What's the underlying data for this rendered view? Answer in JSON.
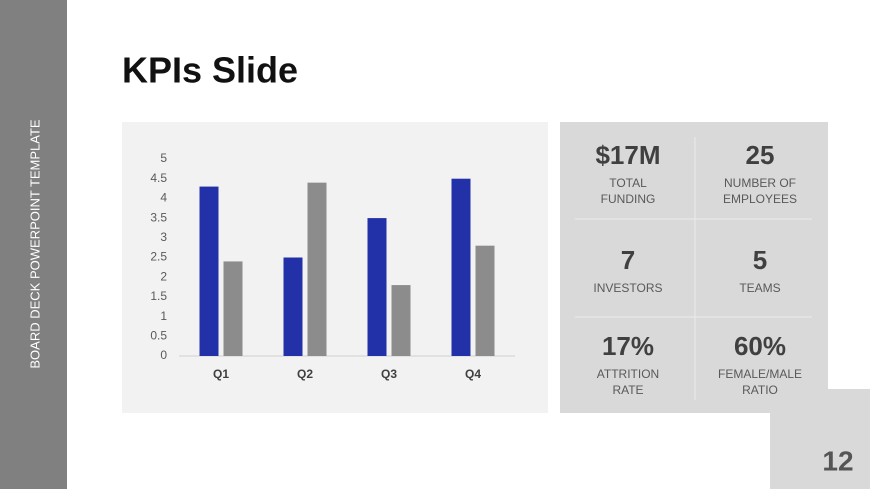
{
  "sidebar": {
    "text": "BOARD DECK POWERPOINT TEMPLATE"
  },
  "title": "KPIs Slide",
  "chart_data": {
    "type": "bar",
    "categories": [
      "Q1",
      "Q2",
      "Q3",
      "Q4"
    ],
    "series": [
      {
        "color": "#2231a8",
        "values": [
          4.3,
          2.5,
          3.5,
          4.5
        ]
      },
      {
        "color": "#8c8c8c",
        "values": [
          2.4,
          4.4,
          1.8,
          2.8
        ]
      }
    ],
    "ylim": [
      0,
      5
    ],
    "yticks": [
      0,
      0.5,
      1,
      1.5,
      2,
      2.5,
      3,
      3.5,
      4,
      4.5,
      5
    ],
    "grid": false
  },
  "kpis": [
    {
      "value": "$17M",
      "label": [
        "TOTAL",
        "FUNDING"
      ]
    },
    {
      "value": "25",
      "label": [
        "NUMBER OF",
        "EMPLOYEES"
      ]
    },
    {
      "value": "7",
      "label": [
        "INVESTORS"
      ]
    },
    {
      "value": "5",
      "label": [
        "TEAMS"
      ]
    },
    {
      "value": "17%",
      "label": [
        "ATTRITION",
        "RATE"
      ]
    },
    {
      "value": "60%",
      "label": [
        "FEMALE/MALE",
        "RATIO"
      ]
    }
  ],
  "page_number": "12"
}
